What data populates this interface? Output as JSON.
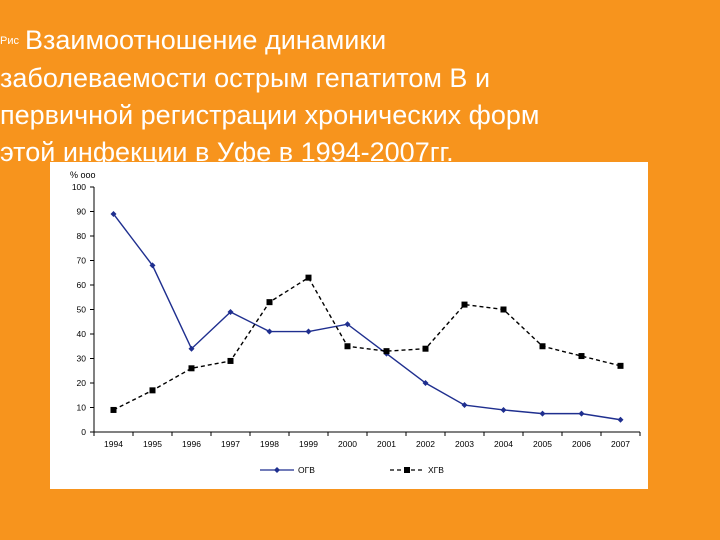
{
  "slide": {
    "title_prefix": "Рис",
    "title_line1": "Взаимоотношение динамики",
    "title_line2": "заболеваемости острым гепатитом В и",
    "title_line3": "первичной регистрации хронических форм",
    "title_line4": "этой инфекции в Уфе в 1994-2007гг."
  },
  "colors": {
    "background": "#f7941d",
    "ogv_line": "#1f2f8f",
    "hgv_line": "#000000"
  },
  "chart_data": {
    "type": "line",
    "title": "",
    "ylabel": "% ооо",
    "xlabel": "",
    "ylim": [
      0,
      100
    ],
    "yticks": [
      0,
      10,
      20,
      30,
      40,
      50,
      60,
      70,
      80,
      90,
      100
    ],
    "categories": [
      "1994",
      "1995",
      "1996",
      "1997",
      "1998",
      "1999",
      "2000",
      "2001",
      "2002",
      "2003",
      "2004",
      "2005",
      "2006",
      "2007"
    ],
    "legend_position": "bottom",
    "grid": false,
    "series": [
      {
        "name": "ОГВ",
        "marker": "diamond",
        "style": "solid",
        "color": "#1f2f8f",
        "values": [
          89,
          68,
          34,
          49,
          41,
          41,
          44,
          32,
          20,
          11,
          9,
          7.5,
          7.5,
          5
        ]
      },
      {
        "name": "ХГВ",
        "marker": "square",
        "style": "dashed",
        "color": "#000000",
        "values": [
          9,
          17,
          26,
          29,
          53,
          63,
          35,
          33,
          34,
          52,
          50,
          35,
          31,
          27
        ]
      }
    ]
  }
}
